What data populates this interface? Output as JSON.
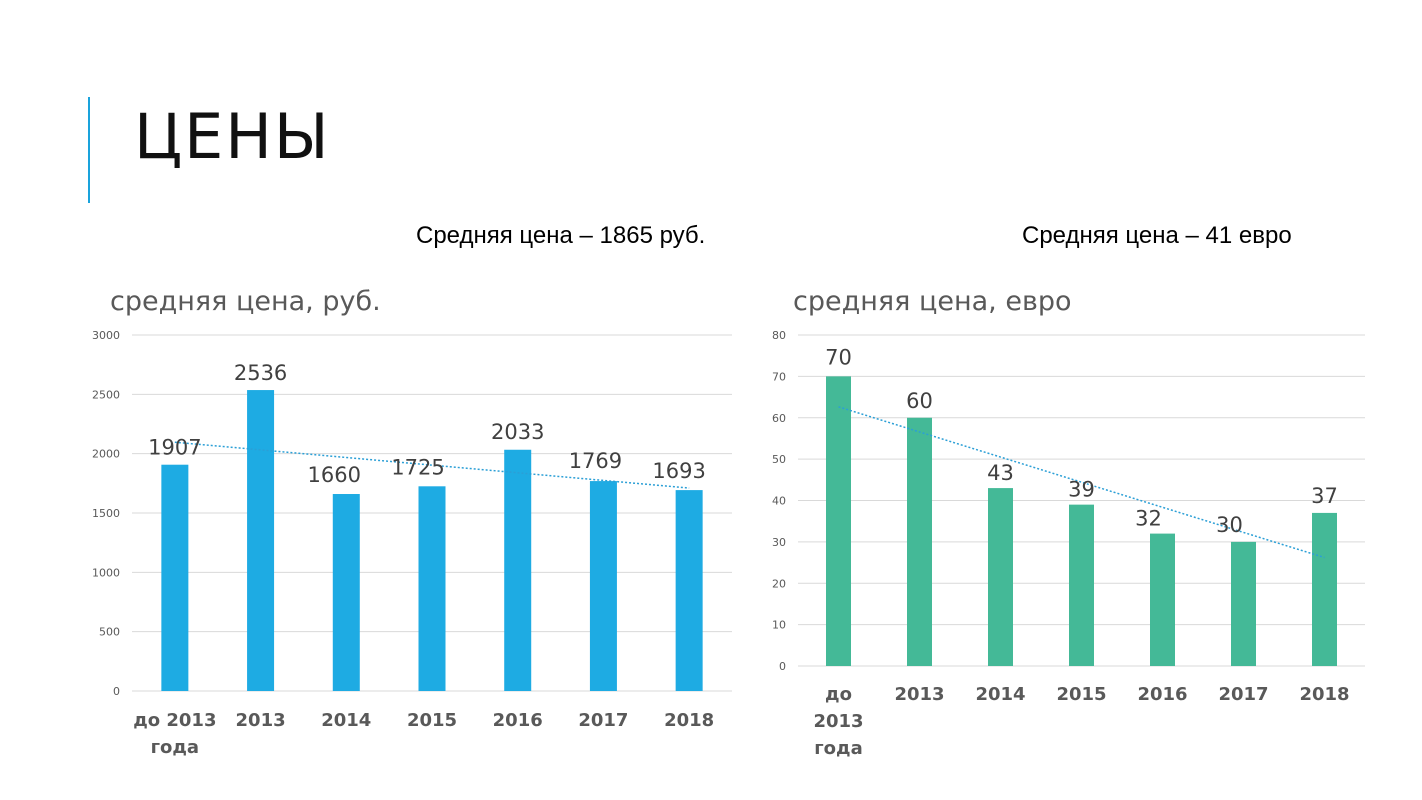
{
  "slide": {
    "title": "ЦЕНЫ",
    "avg_rub": "Средняя цена – 1865 руб.",
    "avg_eur": "Средняя цена – 41 евро",
    "accent_color": "#1aa3dc"
  },
  "chart_data": [
    {
      "type": "bar",
      "title": "средняя цена, руб.",
      "categories": [
        "до 2013 года",
        "2013",
        "2014",
        "2015",
        "2016",
        "2017",
        "2018"
      ],
      "series": [
        {
          "values": [
            1907,
            2536,
            1660,
            1725,
            2033,
            1769,
            1693
          ],
          "color": "#1eabe3"
        }
      ],
      "ylim": [
        0,
        3000
      ],
      "yticks": [
        0,
        500,
        1000,
        1500,
        2000,
        2500,
        3000
      ],
      "trendline": {
        "type": "linear",
        "color": "#2b9fd6",
        "style": "dotted"
      },
      "grid": true,
      "legend": "none",
      "data_labels": true
    },
    {
      "type": "bar",
      "title": "средняя цена, евро",
      "categories": [
        "до 2013 года",
        "2013",
        "2014",
        "2015",
        "2016",
        "2017",
        "2018"
      ],
      "series": [
        {
          "values": [
            70,
            60,
            43,
            39,
            32,
            30,
            37
          ],
          "color": "#44b997"
        }
      ],
      "ylim": [
        0,
        80
      ],
      "yticks": [
        0,
        10,
        20,
        30,
        40,
        50,
        60,
        70,
        80
      ],
      "trendline": {
        "type": "linear",
        "color": "#2b9fd6",
        "style": "dotted"
      },
      "grid": true,
      "legend": "none",
      "data_labels": true
    }
  ]
}
